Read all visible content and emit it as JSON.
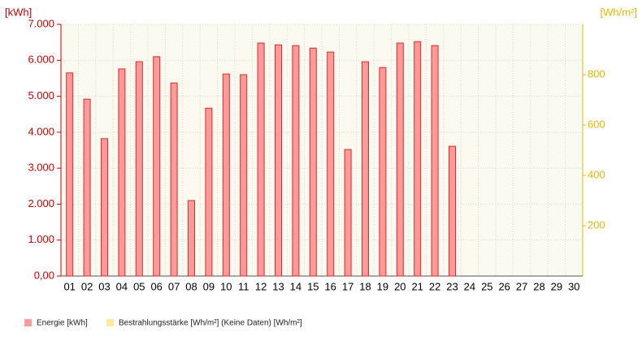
{
  "chart_data": {
    "type": "bar",
    "y_label": "[kWh]",
    "y2_label": "[Wh/m²]",
    "categories": [
      "01",
      "02",
      "03",
      "04",
      "05",
      "06",
      "07",
      "08",
      "09",
      "10",
      "11",
      "12",
      "13",
      "14",
      "15",
      "16",
      "17",
      "18",
      "19",
      "20",
      "21",
      "22",
      "23",
      "24",
      "25",
      "26",
      "27",
      "28",
      "29",
      "30"
    ],
    "series": [
      {
        "name": "Energie [kWh]",
        "color": "#ff9a9a",
        "stroke": "#e02828",
        "values": [
          5650,
          4920,
          3820,
          5760,
          5960,
          6100,
          5370,
          2100,
          4670,
          5620,
          5600,
          6480,
          6430,
          6410,
          6340,
          6230,
          3520,
          5960,
          5800,
          6480,
          6520,
          6410,
          3610,
          null,
          null,
          null,
          null,
          null,
          null,
          null
        ]
      },
      {
        "name": "Bestrahlungsstärke [Wh/m²] (Keine Daten) [Wh/m²]",
        "color": "#ffe8a0",
        "axis": "y2",
        "values": [
          null,
          null,
          null,
          null,
          null,
          null,
          null,
          null,
          null,
          null,
          null,
          null,
          null,
          null,
          null,
          null,
          null,
          null,
          null,
          null,
          null,
          null,
          null,
          null,
          null,
          null,
          null,
          null,
          null,
          null
        ]
      }
    ],
    "ylim": [
      0,
      7000
    ],
    "yticks": [
      {
        "value": 0,
        "label": "0,00"
      },
      {
        "value": 1000,
        "label": "1.000"
      },
      {
        "value": 2000,
        "label": "2.000"
      },
      {
        "value": 3000,
        "label": "3.000"
      },
      {
        "value": 4000,
        "label": "4.000"
      },
      {
        "value": 5000,
        "label": "5.000"
      },
      {
        "value": 6000,
        "label": "6.000"
      },
      {
        "value": 7000,
        "label": "7.000"
      }
    ],
    "y2lim": [
      0,
      1000
    ],
    "y2ticks": [
      200,
      400,
      600,
      800
    ],
    "grid": true
  }
}
